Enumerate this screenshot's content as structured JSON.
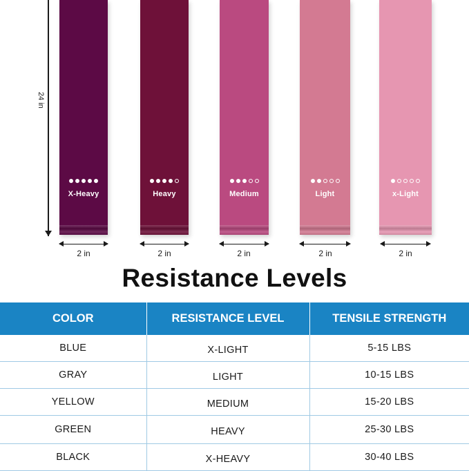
{
  "bands": [
    {
      "label": "X-Heavy",
      "level": 5,
      "color": "#5c0a45"
    },
    {
      "label": "Heavy",
      "level": 4,
      "color": "#6e1139"
    },
    {
      "label": "Medium",
      "level": 3,
      "color": "#ba4a80"
    },
    {
      "label": "Light",
      "level": 2,
      "color": "#d37a92"
    },
    {
      "label": "x-Light",
      "level": 1,
      "color": "#e696b1"
    }
  ],
  "dots_total": 5,
  "dimensions": {
    "length_label": "24 in",
    "width_label": "2 in"
  },
  "title": "Resistance Levels",
  "table": {
    "header_color": "#1a84c4",
    "grid_color": "#9fc9e4",
    "headers": [
      "COLOR",
      "RESISTANCE LEVEL",
      "TENSILE STRENGTH"
    ],
    "rows": [
      {
        "color": "BLUE",
        "level": "X-LIGHT",
        "strength": "5-15 LBS"
      },
      {
        "color": "GRAY",
        "level": "LIGHT",
        "strength": "10-15 LBS"
      },
      {
        "color": "YELLOW",
        "level": "MEDIUM",
        "strength": "15-20 LBS"
      },
      {
        "color": "GREEN",
        "level": "HEAVY",
        "strength": "25-30 LBS"
      },
      {
        "color": "BLACK",
        "level": "X-HEAVY",
        "strength": "30-40 LBS"
      }
    ]
  }
}
